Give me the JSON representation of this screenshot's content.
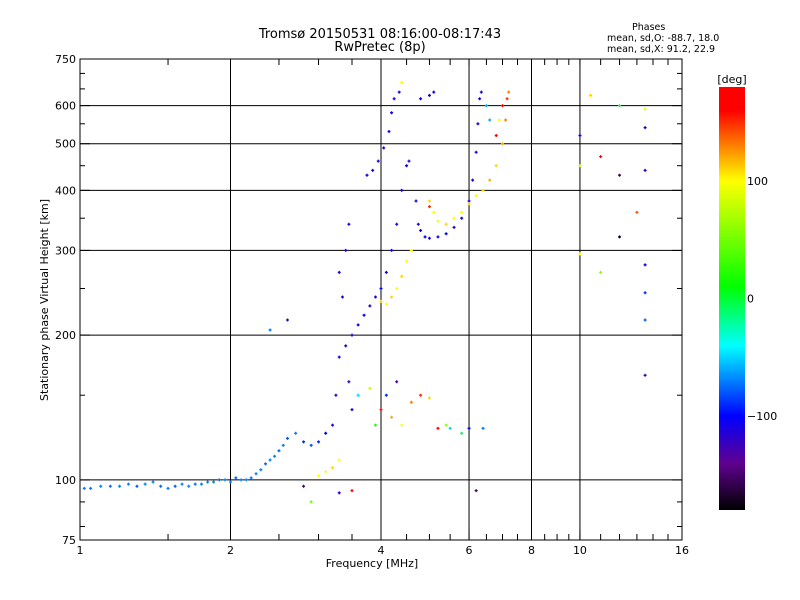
{
  "chart_data": {
    "type": "scatter",
    "title": "Tromsø 20150531 08:16:00-08:17:43",
    "subtitle": "RwPretec (8p)",
    "xlabel": "Frequency [MHz]",
    "ylabel": "Stationary phase Virtual Height [km]",
    "xscale": "log",
    "yscale": "log",
    "xlim": [
      1,
      16
    ],
    "ylim": [
      75,
      750
    ],
    "xticks": [
      1,
      2,
      4,
      6,
      8,
      10,
      16
    ],
    "yticks": [
      75,
      100,
      200,
      300,
      400,
      500,
      600,
      750
    ],
    "xgrid": [
      2,
      4,
      6,
      8,
      10
    ],
    "ygrid": [
      100,
      200,
      300,
      400,
      500,
      600
    ],
    "grid": true,
    "phase_stats": {
      "heading": "Phases",
      "o_line": "mean, sd,O: -88.7, 18.0",
      "x_line": "mean, sd,X:  91.2, 22.9"
    },
    "colorbar": {
      "label": "[deg]",
      "range": [
        -180,
        180
      ],
      "ticks": [
        100,
        0,
        -100
      ],
      "stops": [
        [
          -180,
          "#000000"
        ],
        [
          -140,
          "#600090"
        ],
        [
          -100,
          "#0000ff"
        ],
        [
          -40,
          "#00ffff"
        ],
        [
          10,
          "#00ff00"
        ],
        [
          100,
          "#ffff00"
        ],
        [
          130,
          "#ff8000"
        ],
        [
          160,
          "#ff0000"
        ],
        [
          180,
          "#ff0000"
        ]
      ]
    },
    "points_fields": [
      "frequency_mhz",
      "height_km",
      "phase_deg"
    ],
    "points": [
      [
        1.02,
        96,
        -70
      ],
      [
        1.05,
        96,
        -70
      ],
      [
        1.1,
        97,
        -70
      ],
      [
        1.15,
        97,
        -75
      ],
      [
        1.2,
        97,
        -70
      ],
      [
        1.25,
        98,
        -70
      ],
      [
        1.3,
        97,
        -80
      ],
      [
        1.35,
        98,
        -70
      ],
      [
        1.4,
        99,
        -70
      ],
      [
        1.45,
        97,
        -75
      ],
      [
        1.5,
        96,
        -70
      ],
      [
        1.55,
        97,
        -80
      ],
      [
        1.6,
        98,
        -70
      ],
      [
        1.65,
        97,
        -70
      ],
      [
        1.7,
        98,
        -75
      ],
      [
        1.75,
        98,
        -70
      ],
      [
        1.8,
        99,
        -70
      ],
      [
        1.85,
        99,
        -70
      ],
      [
        1.9,
        100,
        -75
      ],
      [
        1.95,
        100,
        -70
      ],
      [
        2.0,
        99,
        -70
      ],
      [
        2.05,
        101,
        -75
      ],
      [
        2.1,
        100,
        -70
      ],
      [
        2.15,
        100,
        -70
      ],
      [
        2.2,
        101,
        -70
      ],
      [
        2.25,
        103,
        -70
      ],
      [
        2.3,
        105,
        -70
      ],
      [
        2.35,
        108,
        -75
      ],
      [
        2.4,
        110,
        -70
      ],
      [
        2.45,
        112,
        -70
      ],
      [
        2.5,
        115,
        -75
      ],
      [
        2.55,
        118,
        -70
      ],
      [
        2.6,
        122,
        -80
      ],
      [
        2.7,
        125,
        -70
      ],
      [
        2.8,
        120,
        -90
      ],
      [
        2.9,
        118,
        -80
      ],
      [
        3.0,
        120,
        -90
      ],
      [
        3.1,
        125,
        -100
      ],
      [
        3.2,
        130,
        -110
      ],
      [
        3.25,
        150,
        -120
      ],
      [
        3.3,
        180,
        -110
      ],
      [
        3.35,
        240,
        -110
      ],
      [
        3.4,
        300,
        -110
      ],
      [
        3.45,
        340,
        -110
      ],
      [
        3.3,
        270,
        -120
      ],
      [
        3.4,
        190,
        -110
      ],
      [
        3.45,
        160,
        -120
      ],
      [
        3.5,
        140,
        -110
      ],
      [
        3.6,
        150,
        -100
      ],
      [
        3.5,
        200,
        -110
      ],
      [
        3.6,
        210,
        -110
      ],
      [
        3.7,
        220,
        -100
      ],
      [
        3.8,
        230,
        -110
      ],
      [
        3.9,
        240,
        -110
      ],
      [
        4.0,
        250,
        -100
      ],
      [
        4.1,
        270,
        -110
      ],
      [
        4.2,
        300,
        -110
      ],
      [
        4.3,
        340,
        -110
      ],
      [
        4.4,
        400,
        -110
      ],
      [
        4.5,
        450,
        -110
      ],
      [
        4.55,
        460,
        -110
      ],
      [
        2.6,
        215,
        -120
      ],
      [
        2.4,
        205,
        -70
      ],
      [
        4.7,
        380,
        -110
      ],
      [
        4.75,
        340,
        -110
      ],
      [
        4.8,
        330,
        -110
      ],
      [
        4.9,
        320,
        -100
      ],
      [
        5.0,
        318,
        -110
      ],
      [
        5.2,
        320,
        -110
      ],
      [
        5.4,
        325,
        -100
      ],
      [
        5.6,
        335,
        -110
      ],
      [
        5.8,
        350,
        -110
      ],
      [
        6.0,
        380,
        -110
      ],
      [
        6.1,
        420,
        -110
      ],
      [
        6.2,
        480,
        -110
      ],
      [
        6.25,
        550,
        -110
      ],
      [
        6.3,
        620,
        -110
      ],
      [
        6.35,
        640,
        -110
      ],
      [
        6.5,
        600,
        -60
      ],
      [
        6.6,
        560,
        -60
      ],
      [
        3.75,
        430,
        -110
      ],
      [
        3.85,
        440,
        -110
      ],
      [
        3.95,
        460,
        -110
      ],
      [
        4.05,
        490,
        -110
      ],
      [
        4.15,
        530,
        -110
      ],
      [
        4.2,
        580,
        -110
      ],
      [
        4.25,
        620,
        -110
      ],
      [
        4.35,
        640,
        -110
      ],
      [
        4.8,
        620,
        -100
      ],
      [
        5.0,
        630,
        -110
      ],
      [
        5.1,
        640,
        -100
      ],
      [
        4.4,
        670,
        100
      ],
      [
        4.0,
        235,
        110
      ],
      [
        4.1,
        232,
        100
      ],
      [
        4.2,
        240,
        110
      ],
      [
        4.3,
        250,
        100
      ],
      [
        4.4,
        265,
        110
      ],
      [
        4.5,
        285,
        100
      ],
      [
        4.6,
        300,
        100
      ],
      [
        5.0,
        380,
        110
      ],
      [
        5.1,
        360,
        100
      ],
      [
        5.2,
        345,
        100
      ],
      [
        5.4,
        340,
        110
      ],
      [
        5.6,
        350,
        100
      ],
      [
        5.8,
        360,
        100
      ],
      [
        6.0,
        375,
        110
      ],
      [
        6.2,
        390,
        100
      ],
      [
        6.4,
        400,
        110
      ],
      [
        6.6,
        420,
        120
      ],
      [
        6.8,
        450,
        110
      ],
      [
        7.0,
        500,
        120
      ],
      [
        7.1,
        560,
        130
      ],
      [
        7.15,
        620,
        150
      ],
      [
        7.2,
        640,
        130
      ],
      [
        5.0,
        370,
        150
      ],
      [
        6.8,
        520,
        170
      ],
      [
        7.0,
        600,
        160
      ],
      [
        6.9,
        560,
        100
      ],
      [
        3.0,
        102,
        100
      ],
      [
        3.1,
        104,
        100
      ],
      [
        3.2,
        106,
        110
      ],
      [
        3.3,
        110,
        100
      ],
      [
        3.5,
        95,
        160
      ],
      [
        3.3,
        94,
        -120
      ],
      [
        2.8,
        97,
        -150
      ],
      [
        2.9,
        90,
        50
      ],
      [
        3.6,
        150,
        -40
      ],
      [
        3.8,
        155,
        80
      ],
      [
        4.0,
        140,
        160
      ],
      [
        4.2,
        135,
        120
      ],
      [
        4.4,
        130,
        100
      ],
      [
        4.1,
        150,
        -90
      ],
      [
        4.6,
        145,
        130
      ],
      [
        4.8,
        150,
        150
      ],
      [
        5.0,
        148,
        110
      ],
      [
        3.9,
        130,
        20
      ],
      [
        4.3,
        160,
        -130
      ],
      [
        5.2,
        128,
        170
      ],
      [
        5.5,
        128,
        -50
      ],
      [
        6.0,
        128,
        -100
      ],
      [
        6.4,
        128,
        -70
      ],
      [
        5.8,
        125,
        -10
      ],
      [
        5.4,
        130,
        60
      ],
      [
        10,
        520,
        -100
      ],
      [
        10,
        450,
        80
      ],
      [
        10,
        295,
        100
      ],
      [
        10.5,
        630,
        110
      ],
      [
        11,
        470,
        170
      ],
      [
        12,
        430,
        -150
      ],
      [
        12,
        320,
        -170
      ],
      [
        13.5,
        540,
        -100
      ],
      [
        13.5,
        440,
        -110
      ],
      [
        13.5,
        280,
        -110
      ],
      [
        13.5,
        245,
        -90
      ],
      [
        13.5,
        215,
        -80
      ],
      [
        13.5,
        165,
        -130
      ],
      [
        13,
        360,
        140
      ],
      [
        11,
        270,
        60
      ],
      [
        13.5,
        590,
        90
      ],
      [
        12,
        600,
        0
      ],
      [
        6.2,
        95,
        -150
      ]
    ]
  }
}
